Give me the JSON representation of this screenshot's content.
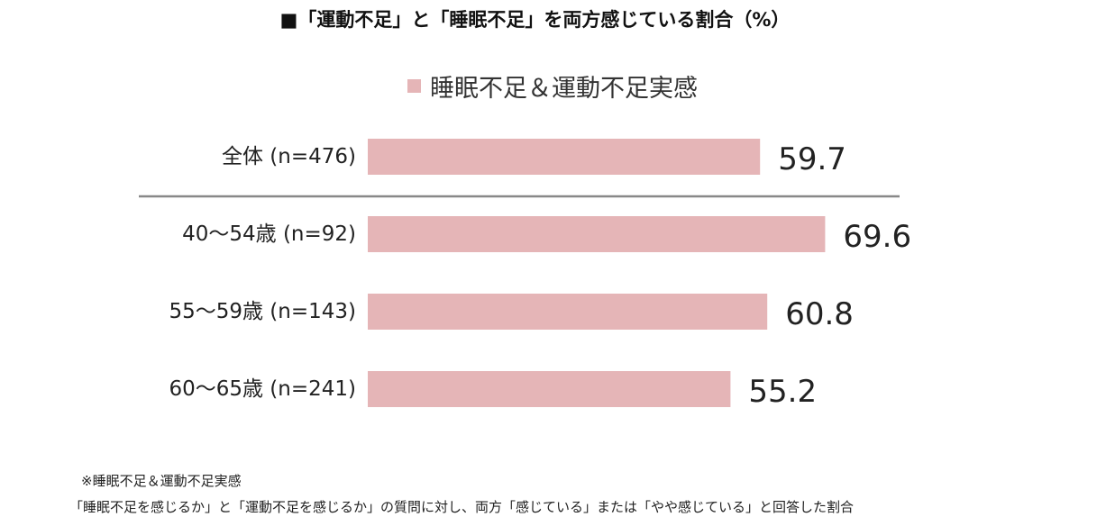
{
  "chart_data": {
    "type": "bar",
    "orientation": "horizontal",
    "title": "■「運動不足」と「睡眠不足」を両方感じている割合（%）",
    "categories": [
      "全体 (n=476)",
      "40～54歳 (n=92)",
      "55～59歳 (n=143)",
      "60～65歳 (n=241)"
    ],
    "series": [
      {
        "name": "睡眠不足＆運動不足実感",
        "values": [
          59.7,
          69.6,
          60.8,
          55.2
        ],
        "labels": [
          "59.7",
          "69.6",
          "60.8",
          "55.2"
        ]
      }
    ],
    "legend": "top-center",
    "grid": false,
    "xlim": [
      0,
      100
    ],
    "separator_after_category": 0,
    "colors": {
      "bar": "#e5b5b7",
      "separator": "#888888",
      "label": "#222222",
      "value": "#222222"
    }
  },
  "footnotes": [
    "※睡眠不足＆運動不足実感",
    "「睡眠不足を感じるか」と「運動不足を感じるか」の質問に対し、両方「感じている」または「やや感じている」と回答した割合"
  ]
}
